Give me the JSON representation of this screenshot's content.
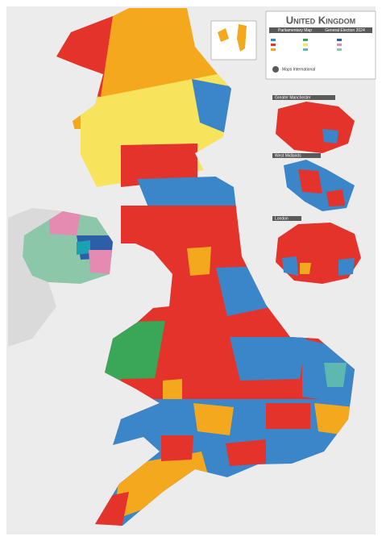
{
  "header": {
    "title": "United Kingdom",
    "subtitle": "Parliamentary Map",
    "edition": "General Election 2024",
    "publisher": "Maps International"
  },
  "insets": [
    {
      "label": "Greater Manchester"
    },
    {
      "label": "West Midlands"
    },
    {
      "label": "London"
    }
  ]
}
